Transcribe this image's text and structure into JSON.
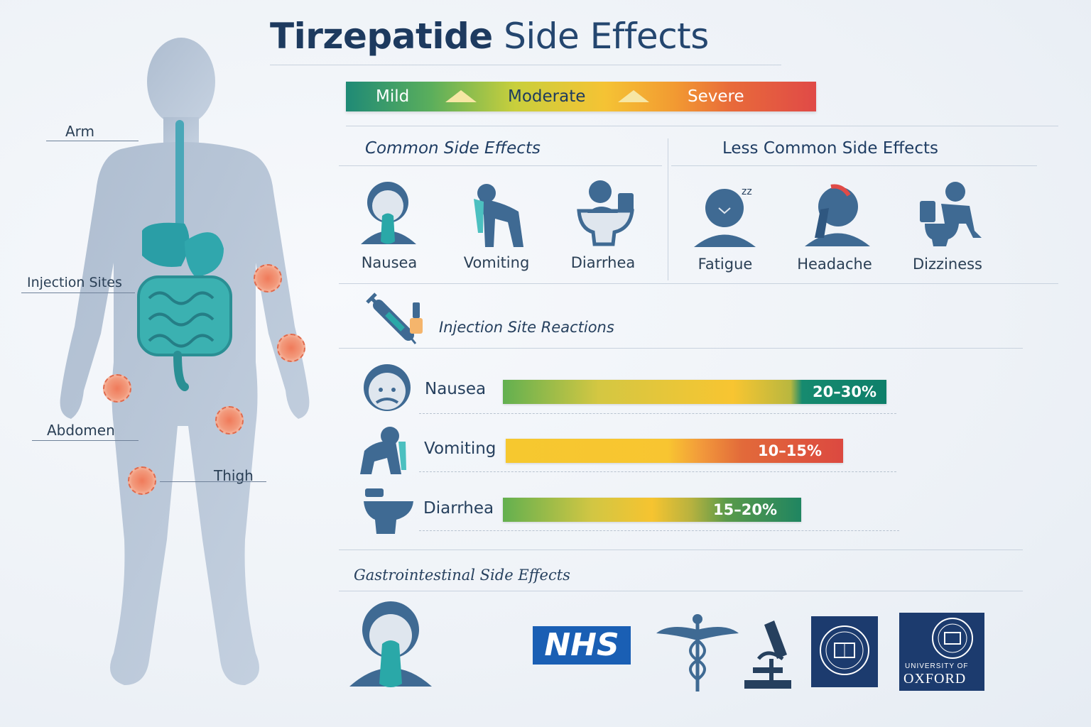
{
  "title": {
    "bold": "Tirzepatide",
    "rest": "Side Effects"
  },
  "severity": {
    "mild": "Mild",
    "moderate": "Moderate",
    "severe": "Severe"
  },
  "body_labels": {
    "arm": "Arm",
    "injection_sites": "Injection Sites",
    "abdomen": "Abdomen",
    "thigh": "Thigh"
  },
  "common": {
    "heading": "Common Side Effects",
    "items": [
      {
        "label": "Nausea",
        "icon": "nausea-icon"
      },
      {
        "label": "Vomiting",
        "icon": "vomiting-icon"
      },
      {
        "label": "Diarrhea",
        "icon": "diarrhea-icon"
      }
    ]
  },
  "less_common": {
    "heading": "Less Common Side Effects",
    "items": [
      {
        "label": "Fatigue",
        "icon": "fatigue-icon"
      },
      {
        "label": "Headache",
        "icon": "headache-icon"
      },
      {
        "label": "Dizziness",
        "icon": "dizziness-icon"
      }
    ]
  },
  "injection_reactions": {
    "label": "Injection Site Reactions",
    "icon": "syringe-icon"
  },
  "chart_data": {
    "type": "bar",
    "categories": [
      "Nausea",
      "Vomiting",
      "Diarrhea"
    ],
    "ranges": [
      [
        20,
        30
      ],
      [
        10,
        15
      ],
      [
        15,
        20
      ]
    ],
    "value_labels": [
      "20–30%",
      "10–15%",
      "15–20%"
    ]
  },
  "gi_heading": "Gastrointestinal Side Effects",
  "logos": {
    "nhs": "NHS",
    "oxford_top": "UNIVERSITY OF",
    "oxford_bottom": "OXFORD"
  },
  "colors": {
    "navy": "#1d3a5f",
    "teal": "#2aa8a8",
    "site": "#f07a5a"
  }
}
